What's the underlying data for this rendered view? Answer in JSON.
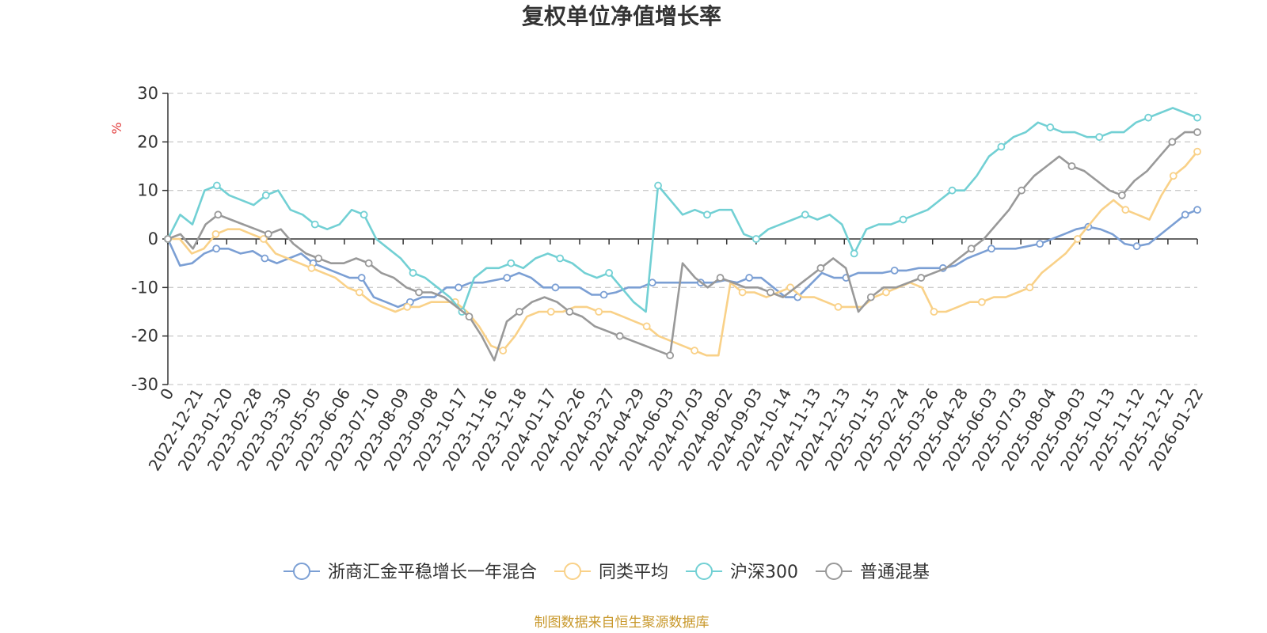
{
  "chart_data": {
    "type": "line",
    "title": "复权单位净值增长率",
    "ylabel": "%",
    "ylim": [
      -30,
      30
    ],
    "yticks": [
      "30",
      "20",
      "10",
      "0",
      "-10",
      "-20",
      "-30"
    ],
    "xticks": [
      "0",
      "2022-12-21",
      "2023-01-20",
      "2023-02-28",
      "2023-03-30",
      "2023-05-05",
      "2023-06-06",
      "2023-07-10",
      "2023-08-09",
      "2023-09-08",
      "2023-10-17",
      "2023-11-16",
      "2023-12-18",
      "2024-01-17",
      "2024-02-26",
      "2024-03-27",
      "2024-04-29",
      "2024-06-03",
      "2024-07-03",
      "2024-08-02",
      "2024-09-03",
      "2024-10-14",
      "2024-11-13",
      "2024-12-13",
      "2025-01-15",
      "2025-02-24",
      "2025-03-26",
      "2025-04-28",
      "2025-06-03",
      "2025-07-03",
      "2025-08-04",
      "2025-09-03",
      "2025-10-13",
      "2025-11-12",
      "2025-12-12",
      "2026-01-22"
    ],
    "series": [
      {
        "name": "浙商汇金平稳增长一年混合",
        "color": "#7b9fd4",
        "values": [
          0,
          -5.5,
          -5,
          -3,
          -2,
          -2,
          -3,
          -2.5,
          -4,
          -5,
          -4,
          -3,
          -5,
          -6,
          -7,
          -8,
          -8,
          -12,
          -13,
          -14,
          -13,
          -12,
          -12,
          -10,
          -10,
          -9,
          -9,
          -8.5,
          -8,
          -7,
          -8,
          -10,
          -10,
          -10,
          -10,
          -11.5,
          -11.5,
          -11,
          -10,
          -10,
          -9,
          -9,
          -9,
          -9,
          -9,
          -9,
          -8.5,
          -9,
          -8,
          -8,
          -10,
          -12,
          -12,
          -9.5,
          -7,
          -8,
          -8,
          -7,
          -7,
          -7,
          -6.5,
          -6.5,
          -6,
          -6,
          -6,
          -5.5,
          -4,
          -3,
          -2,
          -2,
          -2,
          -1.5,
          -1,
          0,
          1,
          2,
          2.5,
          2,
          1,
          -1,
          -1.5,
          -1,
          1,
          3,
          5,
          6
        ]
      },
      {
        "name": "同类平均",
        "color": "#f9d188",
        "values": [
          0,
          0,
          -3,
          -2,
          1,
          2,
          2,
          1,
          0,
          -3,
          -4,
          -5,
          -6,
          -7,
          -8,
          -10,
          -11,
          -13,
          -14,
          -15,
          -14,
          -14,
          -13,
          -13,
          -13,
          -15,
          -18,
          -22,
          -23,
          -20,
          -16,
          -15,
          -15,
          -15,
          -14,
          -14,
          -15,
          -15,
          -16,
          -17,
          -18,
          -20,
          -21,
          -22,
          -23,
          -24,
          -24,
          -9,
          -11,
          -11,
          -12,
          -11,
          -10,
          -12,
          -12,
          -13,
          -14,
          -14,
          -14,
          -12,
          -11,
          -10,
          -9,
          -10,
          -15,
          -15,
          -14,
          -13,
          -13,
          -12,
          -12,
          -11,
          -10,
          -7,
          -5,
          -3,
          0,
          3,
          6,
          8,
          6,
          5,
          4,
          9,
          13,
          15,
          18
        ]
      },
      {
        "name": "沪深300",
        "color": "#72d0d4",
        "values": [
          0,
          5,
          3,
          10,
          11,
          9,
          8,
          7,
          9,
          10,
          6,
          5,
          3,
          2,
          3,
          6,
          5,
          0,
          -2,
          -4,
          -7,
          -8,
          -10,
          -12,
          -15,
          -8,
          -6,
          -6,
          -5,
          -6,
          -4,
          -3,
          -4,
          -5,
          -7,
          -8,
          -7,
          -10,
          -13,
          -15,
          11,
          8,
          5,
          6,
          5,
          6,
          6,
          1,
          0,
          2,
          3,
          4,
          5,
          4,
          5,
          3,
          -3,
          2,
          3,
          3,
          4,
          5,
          6,
          8,
          10,
          10,
          13,
          17,
          19,
          21,
          22,
          24,
          23,
          22,
          22,
          21,
          21,
          22,
          22,
          24,
          25,
          26,
          27,
          26,
          25
        ]
      },
      {
        "name": "普通混基",
        "color": "#999999",
        "values": [
          0,
          1,
          -2,
          3,
          5,
          4,
          3,
          2,
          1,
          2,
          -1,
          -3,
          -4,
          -5,
          -5,
          -4,
          -5,
          -7,
          -8,
          -10,
          -11,
          -11,
          -12,
          -14,
          -16,
          -20,
          -25,
          -17,
          -15,
          -13,
          -12,
          -13,
          -15,
          -16,
          -18,
          -19,
          -20,
          -21,
          -22,
          -23,
          -24,
          -5,
          -8,
          -10,
          -8,
          -9,
          -10,
          -10,
          -11,
          -12,
          -10,
          -8,
          -6,
          -4,
          -6,
          -15,
          -12,
          -10,
          -10,
          -9,
          -8,
          -7,
          -6,
          -4,
          -2,
          0,
          3,
          6,
          10,
          13,
          15,
          17,
          15,
          14,
          12,
          10,
          9,
          12,
          14,
          17,
          20,
          22,
          22
        ]
      }
    ]
  },
  "legend": [
    {
      "label": "浙商汇金平稳增长一年混合",
      "color": "#7b9fd4"
    },
    {
      "label": "同类平均",
      "color": "#f9d188"
    },
    {
      "label": "沪深300",
      "color": "#72d0d4"
    },
    {
      "label": "普通混基",
      "color": "#999999"
    }
  ],
  "source": "制图数据来自恒生聚源数据库"
}
